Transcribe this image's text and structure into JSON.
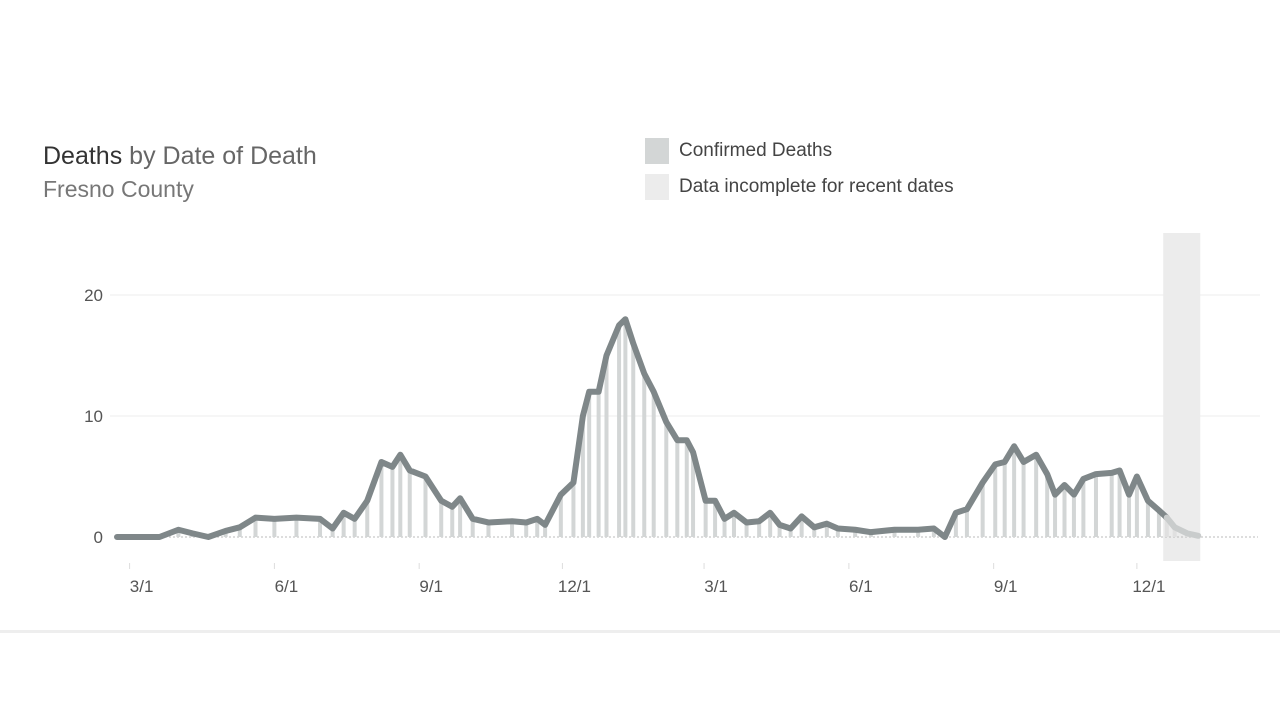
{
  "chart_data": {
    "type": "bar",
    "title_strong": "Deaths",
    "title_rest": " by Date of Death",
    "subtitle": "Fresno County",
    "legend": [
      {
        "label": "Confirmed Deaths",
        "color": "#d3d6d6"
      },
      {
        "label": "Data incomplete for recent dates",
        "color": "#ececec"
      }
    ],
    "ylim": [
      0,
      24
    ],
    "yticks": [
      {
        "value": 0,
        "label": "0"
      },
      {
        "value": 10,
        "label": "10"
      },
      {
        "value": 20,
        "label": "20"
      }
    ],
    "xrange": [
      "2020-02-22",
      "2022-01-12"
    ],
    "xticks": [
      {
        "date": "2020-03-01",
        "label": "3/1"
      },
      {
        "date": "2020-06-01",
        "label": "6/1"
      },
      {
        "date": "2020-09-01",
        "label": "9/1"
      },
      {
        "date": "2020-12-01",
        "label": "12/1"
      },
      {
        "date": "2021-03-01",
        "label": "3/1"
      },
      {
        "date": "2021-06-01",
        "label": "6/1"
      },
      {
        "date": "2021-09-01",
        "label": "9/1"
      },
      {
        "date": "2021-12-01",
        "label": "12/1"
      }
    ],
    "incomplete_from": "2021-12-19",
    "incomplete_to": "2022-01-09",
    "line_color": "#7f8789",
    "bar_color": "#d3d6d6",
    "seven_day_average": [
      [
        "2020-02-22",
        0
      ],
      [
        "2020-03-20",
        0
      ],
      [
        "2020-04-01",
        0.6
      ],
      [
        "2020-04-10",
        0.3
      ],
      [
        "2020-04-20",
        0
      ],
      [
        "2020-05-01",
        0.5
      ],
      [
        "2020-05-10",
        0.8
      ],
      [
        "2020-05-20",
        1.6
      ],
      [
        "2020-06-01",
        1.5
      ],
      [
        "2020-06-15",
        1.6
      ],
      [
        "2020-06-30",
        1.5
      ],
      [
        "2020-07-08",
        0.7
      ],
      [
        "2020-07-15",
        2
      ],
      [
        "2020-07-22",
        1.5
      ],
      [
        "2020-07-30",
        3
      ],
      [
        "2020-08-08",
        6.2
      ],
      [
        "2020-08-15",
        5.8
      ],
      [
        "2020-08-20",
        6.8
      ],
      [
        "2020-08-26",
        5.5
      ],
      [
        "2020-09-05",
        5
      ],
      [
        "2020-09-15",
        3
      ],
      [
        "2020-09-22",
        2.5
      ],
      [
        "2020-09-27",
        3.2
      ],
      [
        "2020-10-05",
        1.5
      ],
      [
        "2020-10-15",
        1.2
      ],
      [
        "2020-10-30",
        1.3
      ],
      [
        "2020-11-08",
        1.2
      ],
      [
        "2020-11-15",
        1.5
      ],
      [
        "2020-11-20",
        1
      ],
      [
        "2020-11-30",
        3.5
      ],
      [
        "2020-12-08",
        4.5
      ],
      [
        "2020-12-14",
        10
      ],
      [
        "2020-12-18",
        12
      ],
      [
        "2020-12-24",
        12
      ],
      [
        "2020-12-29",
        15
      ],
      [
        "2021-01-06",
        17.5
      ],
      [
        "2021-01-10",
        18
      ],
      [
        "2021-01-15",
        16
      ],
      [
        "2021-01-22",
        13.5
      ],
      [
        "2021-01-28",
        12
      ],
      [
        "2021-02-05",
        9.5
      ],
      [
        "2021-02-12",
        8
      ],
      [
        "2021-02-18",
        8
      ],
      [
        "2021-02-22",
        7
      ],
      [
        "2021-03-02",
        3
      ],
      [
        "2021-03-08",
        3
      ],
      [
        "2021-03-14",
        1.5
      ],
      [
        "2021-03-20",
        2
      ],
      [
        "2021-03-28",
        1.2
      ],
      [
        "2021-04-05",
        1.3
      ],
      [
        "2021-04-12",
        2
      ],
      [
        "2021-04-18",
        1
      ],
      [
        "2021-04-25",
        0.7
      ],
      [
        "2021-05-02",
        1.7
      ],
      [
        "2021-05-10",
        0.8
      ],
      [
        "2021-05-18",
        1.1
      ],
      [
        "2021-05-25",
        0.7
      ],
      [
        "2021-06-05",
        0.6
      ],
      [
        "2021-06-15",
        0.4
      ],
      [
        "2021-06-30",
        0.6
      ],
      [
        "2021-07-15",
        0.6
      ],
      [
        "2021-07-25",
        0.7
      ],
      [
        "2021-08-01",
        0
      ],
      [
        "2021-08-08",
        2
      ],
      [
        "2021-08-15",
        2.3
      ],
      [
        "2021-08-25",
        4.5
      ],
      [
        "2021-09-02",
        6
      ],
      [
        "2021-09-08",
        6.2
      ],
      [
        "2021-09-14",
        7.5
      ],
      [
        "2021-09-20",
        6.2
      ],
      [
        "2021-09-28",
        6.8
      ],
      [
        "2021-10-05",
        5.2
      ],
      [
        "2021-10-10",
        3.5
      ],
      [
        "2021-10-16",
        4.3
      ],
      [
        "2021-10-22",
        3.5
      ],
      [
        "2021-10-28",
        4.8
      ],
      [
        "2021-11-05",
        5.2
      ],
      [
        "2021-11-15",
        5.3
      ],
      [
        "2021-11-20",
        5.5
      ],
      [
        "2021-11-26",
        3.5
      ],
      [
        "2021-12-01",
        5
      ],
      [
        "2021-12-08",
        3
      ],
      [
        "2021-12-15",
        2.2
      ],
      [
        "2021-12-20",
        1.6
      ],
      [
        "2021-12-25",
        0.8
      ],
      [
        "2022-01-02",
        0.3
      ],
      [
        "2022-01-09",
        0.1
      ]
    ]
  }
}
